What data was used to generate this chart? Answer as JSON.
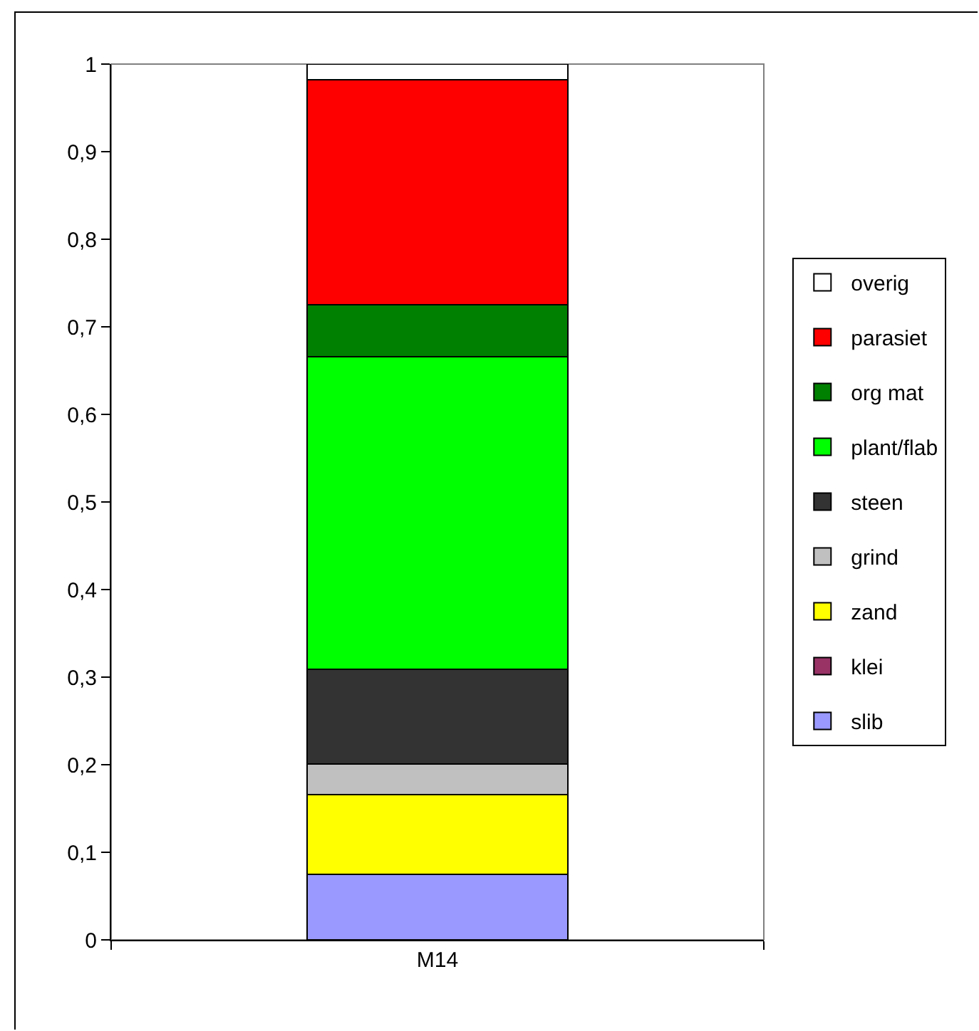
{
  "chart_data": {
    "type": "bar",
    "stacked": true,
    "categories": [
      "M14"
    ],
    "ylim": [
      0,
      1
    ],
    "yticks": [
      0,
      {
        "value": 0.1,
        "label": "0,1"
      },
      {
        "value": 0.2,
        "label": "0,2"
      },
      {
        "value": 0.3,
        "label": "0,3"
      },
      {
        "value": 0.4,
        "label": "0,4"
      },
      {
        "value": 0.5,
        "label": "0,5"
      },
      {
        "value": 0.6,
        "label": "0,6"
      },
      {
        "value": 0.7,
        "label": "0,7"
      },
      {
        "value": 0.8,
        "label": "0,8"
      },
      {
        "value": 0.9,
        "label": "0,9"
      },
      1
    ],
    "series": [
      {
        "name": "slib",
        "color": "#9999ff",
        "values": [
          0.075
        ]
      },
      {
        "name": "klei",
        "color": "#993366",
        "values": [
          null
        ]
      },
      {
        "name": "zand",
        "color": "#ffff00",
        "values": [
          0.091
        ]
      },
      {
        "name": "grind",
        "color": "#c0c0c0",
        "values": [
          0.035
        ]
      },
      {
        "name": "steen",
        "color": "#333333",
        "values": [
          0.108
        ]
      },
      {
        "name": "plant/flab",
        "color": "#00ff00",
        "values": [
          0.357
        ]
      },
      {
        "name": "org mat",
        "color": "#008000",
        "values": [
          0.059
        ]
      },
      {
        "name": "parasiet",
        "color": "#ff0000",
        "values": [
          0.257
        ]
      },
      {
        "name": "overig",
        "color": "#ffffff",
        "values": [
          0.018
        ]
      }
    ],
    "legend": "right",
    "grid": false
  }
}
